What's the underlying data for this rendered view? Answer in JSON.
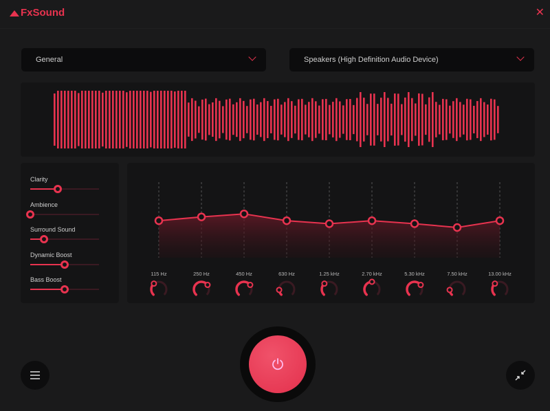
{
  "app": {
    "title": "FxSound",
    "accent": "#e8334f"
  },
  "presets": {
    "selected": "General"
  },
  "output": {
    "selected": "Speakers (High Definition Audio Device)"
  },
  "effects": [
    {
      "label": "Clarity",
      "value": 0.4
    },
    {
      "label": "Ambience",
      "value": 0.0
    },
    {
      "label": "Surround Sound",
      "value": 0.2
    },
    {
      "label": "Dynamic Boost",
      "value": 0.5
    },
    {
      "label": "Bass Boost",
      "value": 0.5
    }
  ],
  "eq": {
    "bands": [
      {
        "freq": "115 Hz",
        "level": 0.49,
        "knob": 0.35
      },
      {
        "freq": "250 Hz",
        "level": 0.54,
        "knob": 0.7
      },
      {
        "freq": "450 Hz",
        "level": 0.58,
        "knob": 0.7
      },
      {
        "freq": "630 Hz",
        "level": 0.49,
        "knob": 0.15
      },
      {
        "freq": "1.25 kHz",
        "level": 0.45,
        "knob": 0.35
      },
      {
        "freq": "2.70 kHz",
        "level": 0.49,
        "knob": 0.5
      },
      {
        "freq": "5.30 kHz",
        "level": 0.45,
        "knob": 0.7
      },
      {
        "freq": "7.50 kHz",
        "level": 0.4,
        "knob": 0.15
      },
      {
        "freq": "13.00 kHz",
        "level": 0.49,
        "knob": 0.35
      }
    ]
  },
  "icons": {
    "menu": "hamburger-icon",
    "power": "power-icon",
    "minimize": "collapse-arrows-icon",
    "close": "close-icon"
  }
}
